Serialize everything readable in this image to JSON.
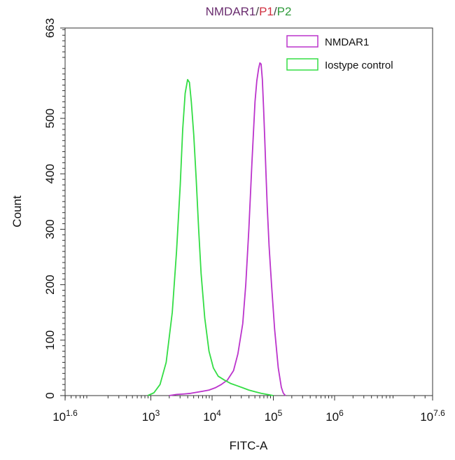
{
  "chart_data": {
    "type": "line",
    "title": {
      "parts": [
        {
          "text": "NMDAR1",
          "color": "#6a2d6f"
        },
        {
          "text": "/",
          "color": "#444444"
        },
        {
          "text": "P1",
          "color": "#d03040"
        },
        {
          "text": "/",
          "color": "#444444"
        },
        {
          "text": "P2",
          "color": "#2e9a3a"
        }
      ]
    },
    "xlabel": "FITC-A",
    "ylabel": "Count",
    "x_scale": "log10",
    "xlim": [
      1.6,
      7.6
    ],
    "ylim": [
      0,
      663
    ],
    "x_ticks": [
      {
        "exp": 1.6,
        "base": "10",
        "sup": "1.6"
      },
      {
        "exp": 3,
        "base": "10",
        "sup": "3"
      },
      {
        "exp": 4,
        "base": "10",
        "sup": "4"
      },
      {
        "exp": 5,
        "base": "10",
        "sup": "5"
      },
      {
        "exp": 6,
        "base": "10",
        "sup": "6"
      },
      {
        "exp": 7.6,
        "base": "10",
        "sup": "7.6"
      }
    ],
    "y_ticks": [
      {
        "value": 0,
        "label": "0"
      },
      {
        "value": 100,
        "label": "100"
      },
      {
        "value": 200,
        "label": "200"
      },
      {
        "value": 300,
        "label": "300"
      },
      {
        "value": 400,
        "label": "400"
      },
      {
        "value": 500,
        "label": "500"
      },
      {
        "value": 663,
        "label": "663"
      }
    ],
    "legend_position": "top-right",
    "grid": false,
    "series": [
      {
        "name": "NMDAR1",
        "color": "#bb33cc",
        "x_log10": [
          3.3,
          3.42,
          3.55,
          3.65,
          3.75,
          3.85,
          3.95,
          4.05,
          4.15,
          4.25,
          4.35,
          4.42,
          4.5,
          4.55,
          4.6,
          4.65,
          4.7,
          4.73,
          4.76,
          4.78,
          4.8,
          4.82,
          4.84,
          4.86,
          4.88,
          4.9,
          4.93,
          4.97,
          5.02,
          5.08,
          5.13,
          5.16,
          5.18,
          5.2
        ],
        "y": [
          0,
          2,
          3,
          4,
          6,
          8,
          10,
          14,
          20,
          28,
          45,
          75,
          130,
          200,
          300,
          420,
          530,
          568,
          590,
          600,
          598,
          570,
          520,
          460,
          400,
          340,
          270,
          200,
          120,
          50,
          15,
          5,
          2,
          0
        ]
      },
      {
        "name": "Iostype control",
        "color": "#33dd44",
        "x_log10": [
          2.95,
          3.05,
          3.15,
          3.25,
          3.35,
          3.42,
          3.48,
          3.52,
          3.56,
          3.6,
          3.63,
          3.66,
          3.7,
          3.74,
          3.78,
          3.82,
          3.88,
          3.95,
          4.02,
          4.1,
          4.2,
          4.3,
          4.4,
          4.5,
          4.6,
          4.7,
          4.8,
          4.9,
          5.0
        ],
        "y": [
          0,
          5,
          20,
          60,
          150,
          260,
          380,
          480,
          545,
          570,
          565,
          530,
          470,
          390,
          300,
          220,
          140,
          80,
          50,
          35,
          28,
          22,
          18,
          14,
          10,
          7,
          4,
          2,
          0
        ]
      }
    ]
  }
}
